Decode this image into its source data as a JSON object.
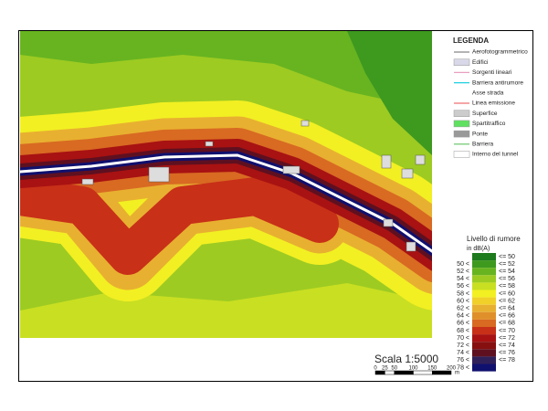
{
  "legend": {
    "title": "LEGENDA",
    "items": [
      "Aerofotogrammetrico",
      "Edifici",
      "Sorgenti lineari",
      "Barriera antirumore",
      "Asse strada",
      "Linea emissione",
      "Superfice",
      "Spartitraffico",
      "Ponte",
      "Barriera",
      "Interno del tunnel"
    ]
  },
  "noise_scale": {
    "title": "Livello di rumore",
    "unit": "in dB(A)",
    "rows": [
      {
        "to": "<= 50",
        "color": "#1d7a1d"
      },
      {
        "from": "50 <",
        "to": "<= 52",
        "color": "#3e991f"
      },
      {
        "from": "52 <",
        "to": "<= 54",
        "color": "#67b420"
      },
      {
        "from": "54 <",
        "to": "<= 56",
        "color": "#9dcb22"
      },
      {
        "from": "56 <",
        "to": "<= 58",
        "color": "#c9df22"
      },
      {
        "from": "58 <",
        "to": "<= 60",
        "color": "#f2f022"
      },
      {
        "from": "60 <",
        "to": "<= 62",
        "color": "#f1d02a"
      },
      {
        "from": "62 <",
        "to": "<= 64",
        "color": "#e8b030"
      },
      {
        "from": "64 <",
        "to": "<= 66",
        "color": "#e0902a"
      },
      {
        "from": "66 <",
        "to": "<= 68",
        "color": "#d86a22"
      },
      {
        "from": "68 <",
        "to": "<= 70",
        "color": "#c83018"
      },
      {
        "from": "70 <",
        "to": "<= 72",
        "color": "#a81212"
      },
      {
        "from": "72 <",
        "to": "<= 74",
        "color": "#861010"
      },
      {
        "from": "74 <",
        "to": "<= 76",
        "color": "#5e1020"
      },
      {
        "from": "76 <",
        "to": "<= 78",
        "color": "#30205a"
      },
      {
        "from": "78 <",
        "color": "#10106e"
      }
    ]
  },
  "scale_bar": {
    "title": "Scala 1:5000",
    "ticks": [
      0,
      25,
      50,
      100,
      150,
      200
    ],
    "unit": "m"
  }
}
